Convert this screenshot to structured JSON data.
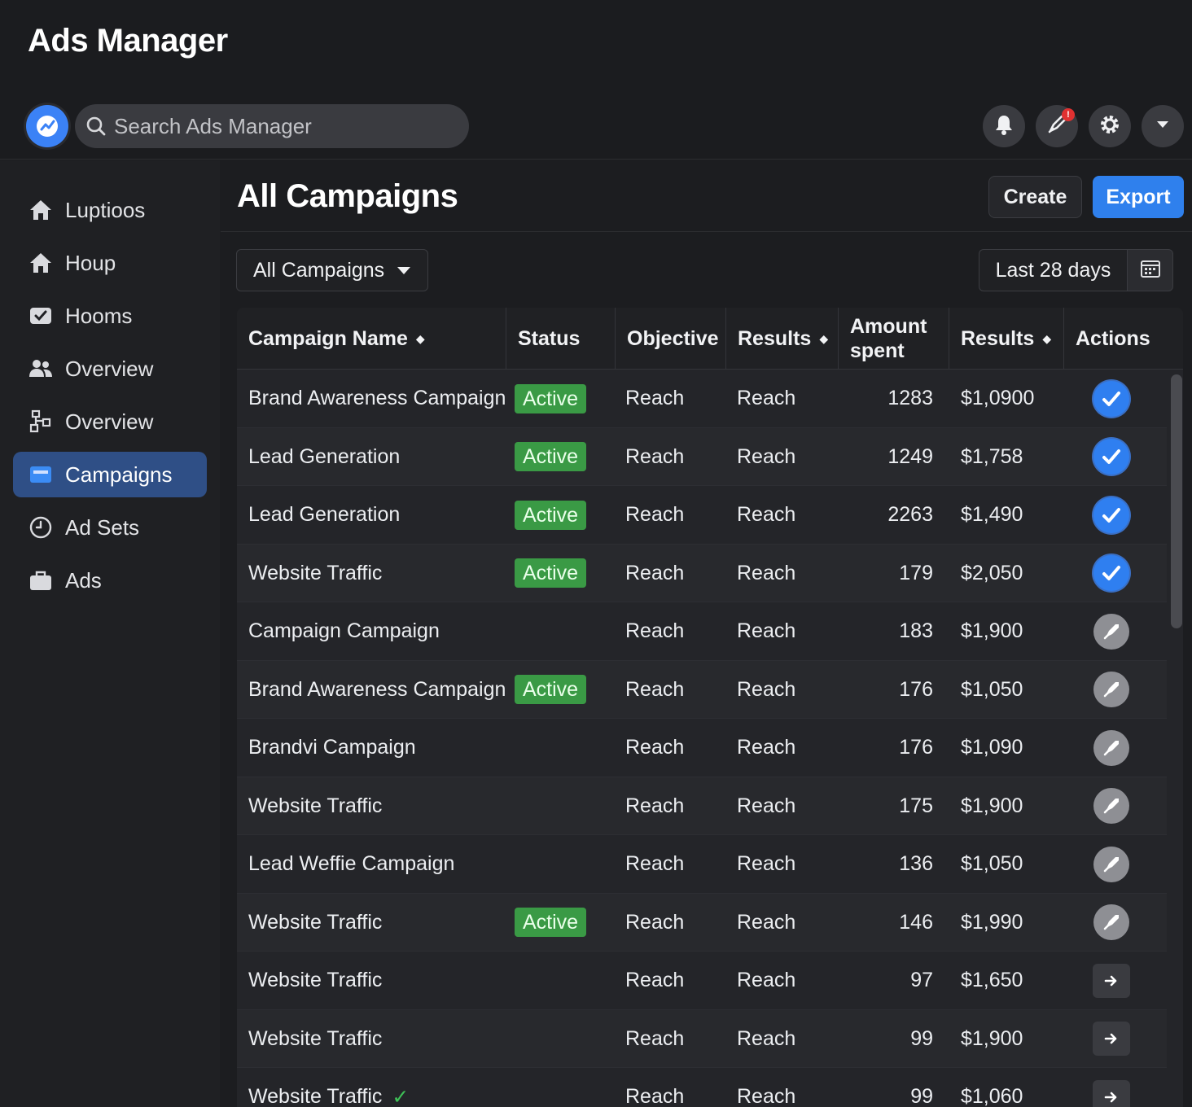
{
  "app": {
    "title": "Ads Manager",
    "search_placeholder": "Search Ads Manager",
    "notification_count": "!"
  },
  "sidebar": {
    "items": [
      {
        "label": "Luptioos",
        "icon": "home-icon"
      },
      {
        "label": "Houp",
        "icon": "home-icon"
      },
      {
        "label": "Hooms",
        "icon": "checkbox-icon"
      },
      {
        "label": "Overview",
        "icon": "people-icon"
      },
      {
        "label": "Overview",
        "icon": "org-icon"
      },
      {
        "label": "Campaigns",
        "icon": "folder-icon"
      },
      {
        "label": "Ad Sets",
        "icon": "clock-icon"
      },
      {
        "label": "Ads",
        "icon": "briefcase-icon"
      }
    ],
    "active_index": 5
  },
  "main": {
    "title": "All Campaigns",
    "create_label": "Create",
    "export_label": "Export",
    "filter_label": "All Campaigns",
    "date_range": "Last 28 days"
  },
  "table": {
    "headers": {
      "name": "Campaign Name",
      "status": "Status",
      "objective": "Objective",
      "results": "Results",
      "amount_line1": "Amount",
      "amount_line2": "spent",
      "results2": "Results",
      "actions": "Actions"
    },
    "rows": [
      {
        "name": "Brand Awareness Campaign",
        "status": "Active",
        "objective": "Reach",
        "results": "Reach",
        "amount": "1283",
        "spent": "$1,0900",
        "action": "blue"
      },
      {
        "name": "Lead Generation",
        "status": "Active",
        "objective": "Reach",
        "results": "Reach",
        "amount": "1249",
        "spent": "$1,758",
        "action": "blue"
      },
      {
        "name": "Lead Generation",
        "status": "Active",
        "objective": "Reach",
        "results": "Reach",
        "amount": "2263",
        "spent": "$1,490",
        "action": "blue"
      },
      {
        "name": "Website Traffic",
        "status": "Active",
        "objective": "Reach",
        "results": "Reach",
        "amount": "179",
        "spent": "$2,050",
        "action": "blue"
      },
      {
        "name": "Campaign Campaign",
        "status": "",
        "objective": "Reach",
        "results": "Reach",
        "amount": "183",
        "spent": "$1,900",
        "action": "grey"
      },
      {
        "name": "Brand Awareness Campaign",
        "status": "Active",
        "objective": "Reach",
        "results": "Reach",
        "amount": "176",
        "spent": "$1,050",
        "action": "grey"
      },
      {
        "name": "Brandvi Campaign",
        "status": "",
        "objective": "Reach",
        "results": "Reach",
        "amount": "176",
        "spent": "$1,090",
        "action": "grey"
      },
      {
        "name": "Website Traffic",
        "status": "",
        "objective": "Reach",
        "results": "Reach",
        "amount": "175",
        "spent": "$1,900",
        "action": "grey"
      },
      {
        "name": "Lead Weffie Campaign",
        "status": "",
        "objective": "Reach",
        "results": "Reach",
        "amount": "136",
        "spent": "$1,050",
        "action": "grey"
      },
      {
        "name": "Website Traffic",
        "status": "Active",
        "objective": "Reach",
        "results": "Reach",
        "amount": "146",
        "spent": "$1,990",
        "action": "grey"
      },
      {
        "name": "Website Traffic",
        "status": "",
        "objective": "Reach",
        "results": "Reach",
        "amount": "97",
        "spent": "$1,650",
        "action": "arrow"
      },
      {
        "name": "Website Traffic",
        "status": "",
        "objective": "Reach",
        "results": "Reach",
        "amount": "99",
        "spent": "$1,900",
        "action": "arrow"
      },
      {
        "name": "Website Traffic",
        "status": "",
        "objective": "Reach",
        "results": "Reach",
        "amount": "99",
        "spent": "$1,060",
        "action": "arrow",
        "check": "✓"
      }
    ]
  },
  "colors": {
    "accent": "#2f80ed",
    "active_green": "#3a9a45",
    "sidebar_active": "#2f4f86"
  }
}
